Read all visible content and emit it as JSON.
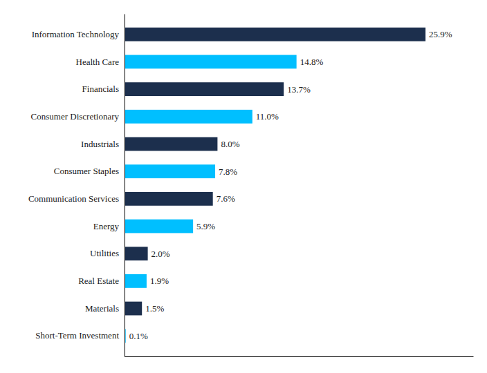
{
  "chart_data": {
    "type": "bar",
    "orientation": "horizontal",
    "categories": [
      "Information Technology",
      "Health Care",
      "Financials",
      "Consumer Discretionary",
      "Industrials",
      "Consumer Staples",
      "Communication Services",
      "Energy",
      "Utilities",
      "Real Estate",
      "Materials",
      "Short-Term Investment"
    ],
    "values": [
      25.9,
      14.8,
      13.7,
      11.0,
      8.0,
      7.8,
      7.6,
      5.9,
      2.0,
      1.9,
      1.5,
      0.1
    ],
    "value_labels": [
      "25.9%",
      "14.8%",
      "13.7%",
      "11.0%",
      "8.0%",
      "7.8%",
      "7.6%",
      "5.9%",
      "2.0%",
      "1.9%",
      "1.5%",
      "0.1%"
    ],
    "colors": [
      "#1c2f4d",
      "#00bfff",
      "#1c2f4d",
      "#00bfff",
      "#1c2f4d",
      "#00bfff",
      "#1c2f4d",
      "#00bfff",
      "#1c2f4d",
      "#00bfff",
      "#1c2f4d",
      "#00bfff"
    ],
    "xlim": [
      0,
      30
    ],
    "data_labels": true,
    "tick_labels": "y",
    "grid": false
  }
}
